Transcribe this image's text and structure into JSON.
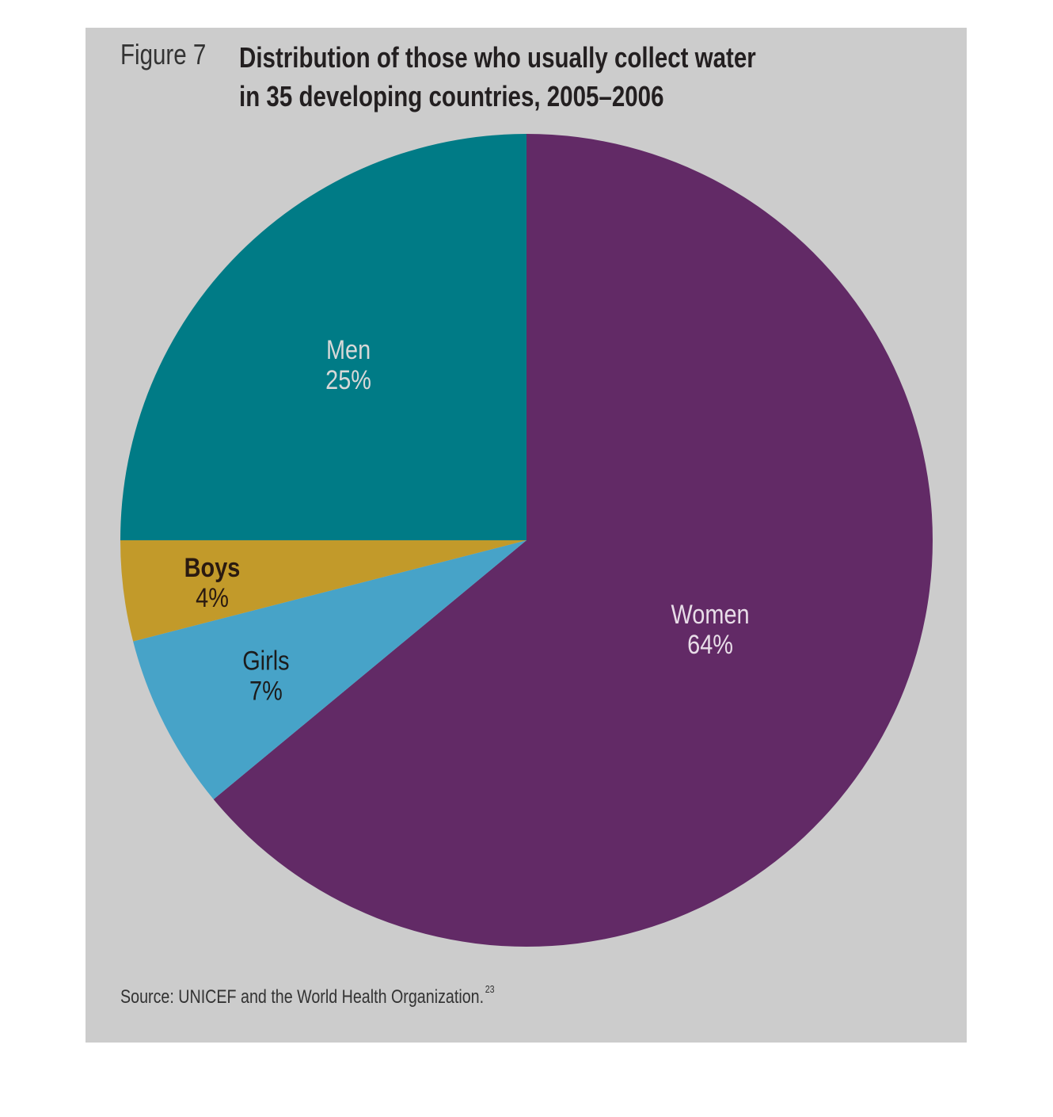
{
  "figure": {
    "label": "Figure 7",
    "title_line1": "Distribution of those who usually collect water",
    "title_line2": "in 35 developing countries, 2005–2006",
    "source": "Source: UNICEF and the World Health Organization.",
    "source_note": "23"
  },
  "chart_data": {
    "type": "pie",
    "title": "Distribution of those who usually collect water in 35 developing countries, 2005–2006",
    "start_angle_deg": 0,
    "direction": "clockwise",
    "slices": [
      {
        "label": "Women",
        "value": 64,
        "value_label": "64%",
        "color": "#622a66",
        "text_color": "#e8dde8"
      },
      {
        "label": "Girls",
        "value": 7,
        "value_label": "7%",
        "color": "#47a3c8",
        "text_color": "#1c1c1c"
      },
      {
        "label": "Boys",
        "value": 4,
        "value_label": "4%",
        "color": "#c29a2a",
        "text_color": "#2a1a10"
      },
      {
        "label": "Men",
        "value": 25,
        "value_label": "25%",
        "color": "#007b86",
        "text_color": "#d8d8d8"
      }
    ]
  }
}
